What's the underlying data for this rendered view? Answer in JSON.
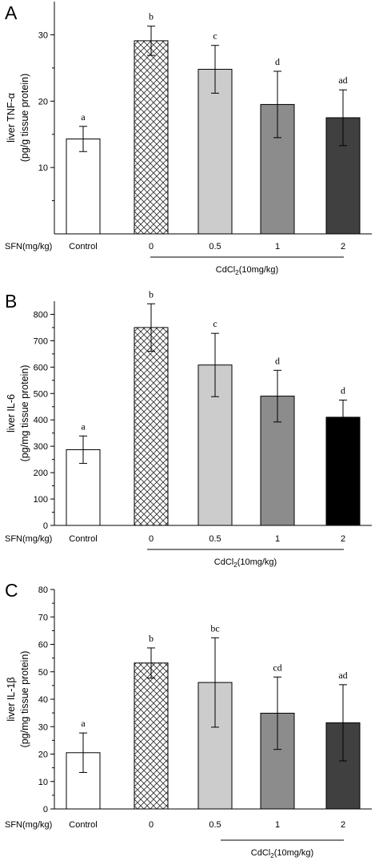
{
  "chart_data": [
    {
      "panel": "A",
      "type": "bar",
      "ylabel_line1": "liver TNF-α",
      "ylabel_line2": "(pg/g tissue protein)",
      "xlabel_prefix": "SFN(mg/kg)",
      "categories": [
        "Control",
        "0",
        "0.5",
        "1",
        "2"
      ],
      "values": [
        14.3,
        29.1,
        24.8,
        19.5,
        17.5
      ],
      "errors": [
        1.9,
        2.2,
        3.6,
        5.0,
        4.2
      ],
      "significance": [
        "a",
        "b",
        "c",
        "d",
        "ad"
      ],
      "ylim": [
        0,
        35
      ],
      "yticks": [
        10,
        20,
        30
      ],
      "group_label_main": "CdCl",
      "group_label_sub": "2",
      "group_label_rest": "(10mg/kg)"
    },
    {
      "panel": "B",
      "type": "bar",
      "ylabel_line1": "liver IL-6",
      "ylabel_line2": "(pg/mg tissue protein)",
      "xlabel_prefix": "SFN(mg/kg)",
      "categories": [
        "Control",
        "0",
        "0.5",
        "1",
        "2"
      ],
      "values": [
        287,
        750,
        608,
        490,
        410
      ],
      "errors": [
        52,
        90,
        120,
        98,
        65
      ],
      "significance": [
        "a",
        "b",
        "c",
        "d",
        "d"
      ],
      "ylim": [
        0,
        850
      ],
      "yticks": [
        0,
        100,
        200,
        300,
        400,
        500,
        600,
        700,
        800
      ],
      "group_label_main": "CdCl",
      "group_label_sub": "2",
      "group_label_rest": "(10mg/kg)"
    },
    {
      "panel": "C",
      "type": "bar",
      "ylabel_line1": "liver IL-1β",
      "ylabel_line2": "(pg/mg tissue protein)",
      "xlabel_prefix": "SFN(mg/kg)",
      "categories": [
        "Control",
        "0",
        "0.5",
        "1",
        "2"
      ],
      "values": [
        20.5,
        53.2,
        46.1,
        34.9,
        31.4
      ],
      "errors": [
        7.2,
        5.5,
        16.3,
        13.2,
        13.9
      ],
      "significance": [
        "a",
        "b",
        "bc",
        "cd",
        "ad"
      ],
      "ylim": [
        0,
        80
      ],
      "yticks": [
        0,
        10,
        20,
        30,
        40,
        50,
        60,
        70,
        80
      ],
      "group_label_main": "CdCl",
      "group_label_sub": "2",
      "group_label_rest": "(10mg/kg)"
    }
  ],
  "bar_fills": [
    "#ffffff",
    "hatch",
    "#cccccc",
    "#8c8c8c",
    "#404040"
  ],
  "bar_fills_panel_b_last": "#000000"
}
